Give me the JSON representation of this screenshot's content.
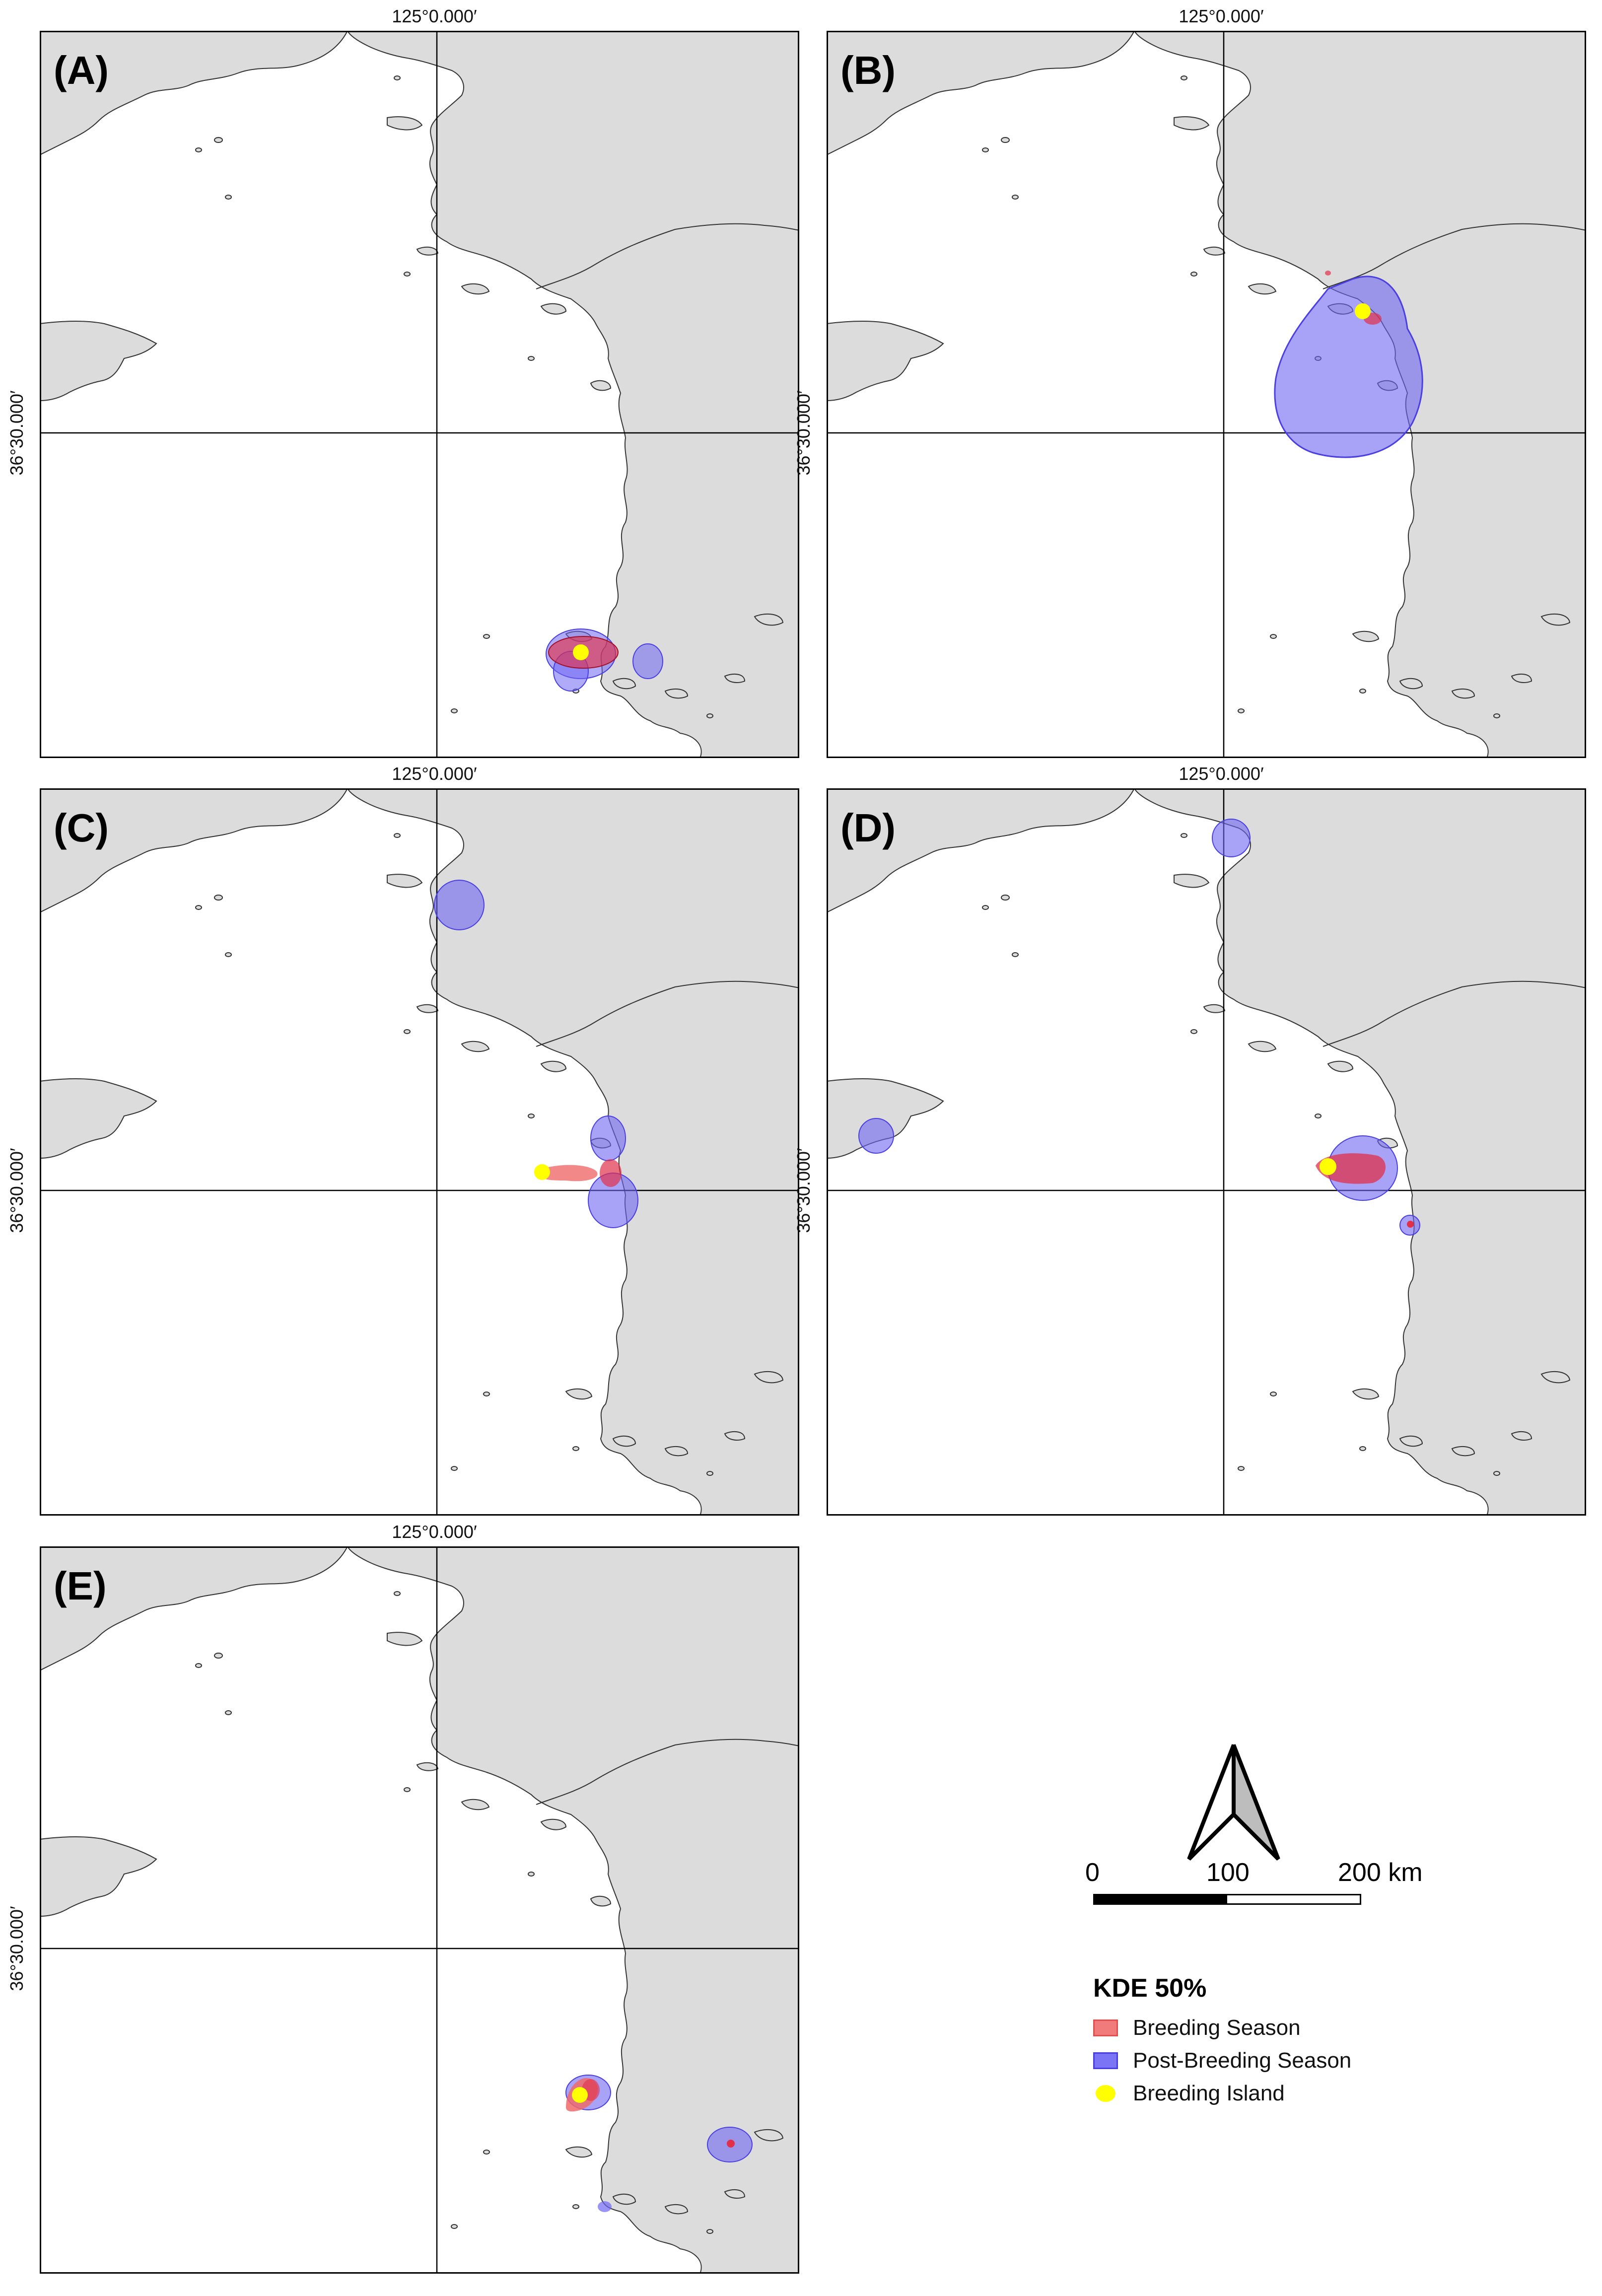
{
  "map": {
    "longitude_label": "125°0.000′",
    "latitude_label": "36°30.000′",
    "colors": {
      "land": "#dcdcdc",
      "sea": "#ffffff",
      "breeding": "#f06a6a",
      "post_breeding": "#6f66f4",
      "breeding_island": "#ffff00"
    }
  },
  "panels": [
    {
      "letter": "(A)"
    },
    {
      "letter": "(B)"
    },
    {
      "letter": "(C)"
    },
    {
      "letter": "(D)"
    },
    {
      "letter": "(E)"
    }
  ],
  "scale": {
    "ticks": [
      "0",
      "100",
      "200 km"
    ]
  },
  "legend": {
    "title": "KDE 50%",
    "items": [
      {
        "label": "Breeding Season",
        "color": "#f06a6a"
      },
      {
        "label": "Post-Breeding Season",
        "color": "#6f66f4"
      },
      {
        "label": "Breeding Island",
        "color": "#ffff00"
      }
    ]
  }
}
